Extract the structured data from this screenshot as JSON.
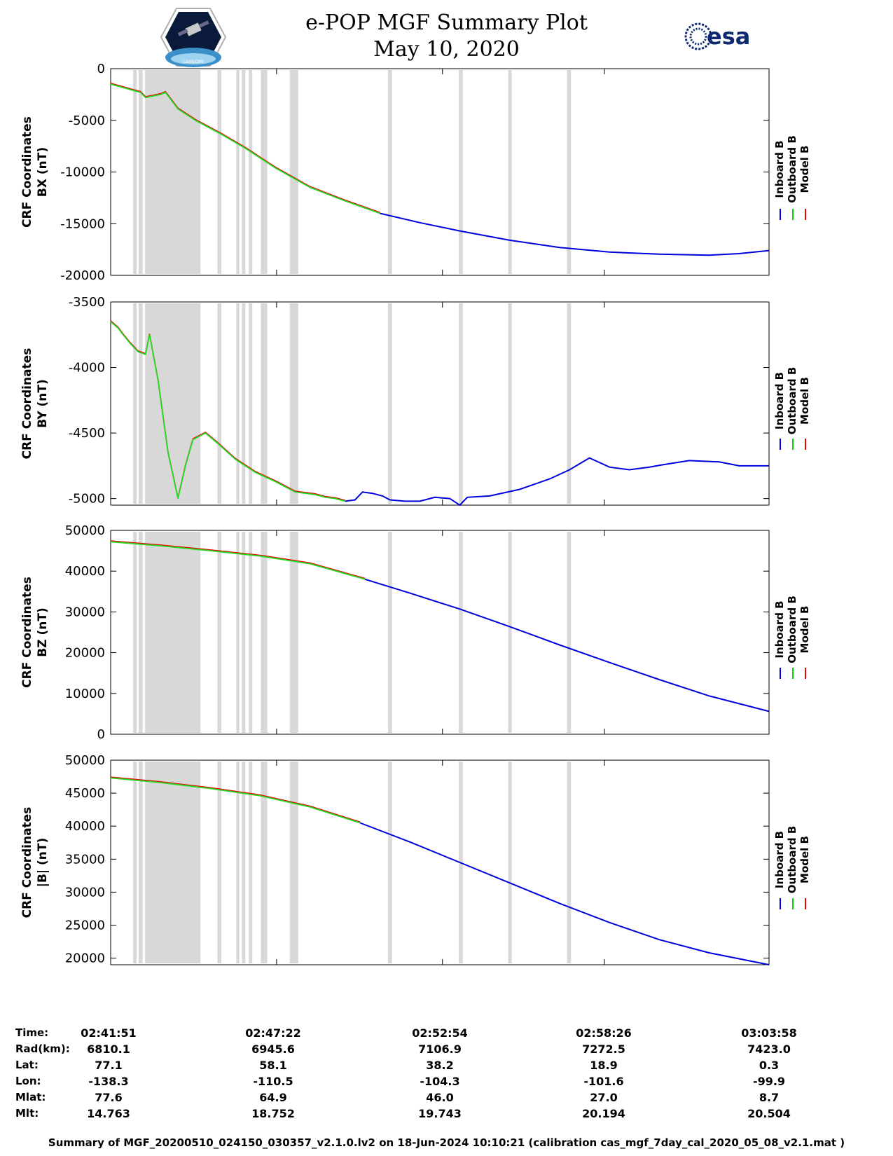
{
  "header": {
    "title_line1": "e-POP MGF Summary Plot",
    "title_line2": "May 10, 2020",
    "logo_left_text": "CASSIOPE",
    "logo_right_text": "esa"
  },
  "legend": {
    "entries": [
      {
        "label": "Inboard B",
        "color": "#0000dd"
      },
      {
        "label": "Outboard B",
        "color": "#00dd00"
      },
      {
        "label": "Model B",
        "color": "#ee0000"
      }
    ]
  },
  "colors": {
    "inboard": "#0000dd",
    "outboard": "#22dd22",
    "model": "#ee0000",
    "gap": "#d8d8d8"
  },
  "chart_data": [
    {
      "type": "line",
      "ylabel_line1": "CRF Coordinates",
      "ylabel_line2": "BX (nT)",
      "ylim": [
        -20000,
        0
      ],
      "yticks": [
        0,
        -5000,
        -10000,
        -15000,
        -20000
      ],
      "tick_labels": [
        "0",
        "-5000",
        "-10000",
        "-15000",
        "-20000"
      ],
      "x_range": [
        0,
        1320
      ],
      "green_until": 540,
      "series_points": [
        [
          0,
          -1500
        ],
        [
          30,
          -1900
        ],
        [
          45,
          -2100
        ],
        [
          60,
          -2300
        ],
        [
          70,
          -2800
        ],
        [
          100,
          -2500
        ],
        [
          110,
          -2300
        ],
        [
          135,
          -3900
        ],
        [
          170,
          -5000
        ],
        [
          220,
          -6300
        ],
        [
          270,
          -7700
        ],
        [
          330,
          -9600
        ],
        [
          400,
          -11500
        ],
        [
          470,
          -12800
        ],
        [
          540,
          -14000
        ],
        [
          620,
          -14900
        ],
        [
          700,
          -15700
        ],
        [
          800,
          -16600
        ],
        [
          900,
          -17300
        ],
        [
          1000,
          -17750
        ],
        [
          1100,
          -17950
        ],
        [
          1200,
          -18050
        ],
        [
          1260,
          -17900
        ],
        [
          1320,
          -17600
        ]
      ]
    },
    {
      "type": "line",
      "ylabel_line1": "CRF Coordinates",
      "ylabel_line2": "BY (nT)",
      "ylim": [
        -5050,
        -3500
      ],
      "yticks": [
        -3500,
        -4000,
        -4500,
        -5000
      ],
      "tick_labels": [
        "-3500",
        "-4000",
        "-4500",
        "-5000"
      ],
      "x_range": [
        0,
        1320
      ],
      "green_until": 470,
      "series_points": [
        [
          0,
          -3650
        ],
        [
          15,
          -3700
        ],
        [
          25,
          -3750
        ],
        [
          40,
          -3820
        ],
        [
          55,
          -3880
        ],
        [
          70,
          -3900
        ],
        [
          78,
          -3750
        ],
        [
          95,
          -4100
        ],
        [
          115,
          -4650
        ],
        [
          135,
          -5000
        ],
        [
          150,
          -4750
        ],
        [
          165,
          -4550
        ],
        [
          190,
          -4500
        ],
        [
          215,
          -4580
        ],
        [
          250,
          -4700
        ],
        [
          290,
          -4800
        ],
        [
          330,
          -4870
        ],
        [
          370,
          -4950
        ],
        [
          410,
          -4970
        ],
        [
          430,
          -4990
        ],
        [
          450,
          -5000
        ],
        [
          470,
          -5020
        ],
        [
          490,
          -5010
        ],
        [
          505,
          -4950
        ],
        [
          525,
          -4960
        ],
        [
          545,
          -4980
        ],
        [
          560,
          -5010
        ],
        [
          590,
          -5020
        ],
        [
          620,
          -5020
        ],
        [
          650,
          -4990
        ],
        [
          680,
          -5000
        ],
        [
          700,
          -5050
        ],
        [
          715,
          -4990
        ],
        [
          760,
          -4980
        ],
        [
          820,
          -4930
        ],
        [
          880,
          -4850
        ],
        [
          920,
          -4780
        ],
        [
          960,
          -4690
        ],
        [
          1000,
          -4760
        ],
        [
          1040,
          -4780
        ],
        [
          1080,
          -4760
        ],
        [
          1110,
          -4740
        ],
        [
          1160,
          -4710
        ],
        [
          1220,
          -4720
        ],
        [
          1260,
          -4750
        ],
        [
          1320,
          -4750
        ]
      ]
    },
    {
      "type": "line",
      "ylabel_line1": "CRF Coordinates",
      "ylabel_line2": "BZ (nT)",
      "ylim": [
        0,
        50000
      ],
      "yticks": [
        50000,
        40000,
        30000,
        20000,
        10000,
        0
      ],
      "tick_labels": [
        "50000",
        "40000",
        "30000",
        "20000",
        "10000",
        "0"
      ],
      "x_range": [
        0,
        1320
      ],
      "green_until": 510,
      "series_points": [
        [
          0,
          47200
        ],
        [
          100,
          46200
        ],
        [
          200,
          45000
        ],
        [
          300,
          43700
        ],
        [
          400,
          41800
        ],
        [
          510,
          38000
        ],
        [
          600,
          34600
        ],
        [
          700,
          30700
        ],
        [
          800,
          26400
        ],
        [
          900,
          21900
        ],
        [
          1000,
          17600
        ],
        [
          1100,
          13400
        ],
        [
          1200,
          9400
        ],
        [
          1320,
          5600
        ]
      ]
    },
    {
      "type": "line",
      "ylabel_line1": "CRF Coordinates",
      "ylabel_line2": "|B| (nT)",
      "ylim": [
        19000,
        50000
      ],
      "yticks": [
        50000,
        45000,
        40000,
        35000,
        30000,
        25000,
        20000
      ],
      "tick_labels": [
        "50000",
        "45000",
        "40000",
        "35000",
        "30000",
        "25000",
        "20000"
      ],
      "x_range": [
        0,
        1320
      ],
      "green_until": 500,
      "series_points": [
        [
          0,
          47300
        ],
        [
          100,
          46600
        ],
        [
          200,
          45700
        ],
        [
          300,
          44600
        ],
        [
          400,
          42900
        ],
        [
          500,
          40500
        ],
        [
          600,
          37600
        ],
        [
          700,
          34500
        ],
        [
          800,
          31400
        ],
        [
          900,
          28300
        ],
        [
          1000,
          25400
        ],
        [
          1100,
          22800
        ],
        [
          1200,
          20800
        ],
        [
          1320,
          19000
        ]
      ]
    }
  ],
  "gap_bands": [
    [
      45,
      52
    ],
    [
      56,
      64
    ],
    [
      69,
      80
    ],
    [
      80,
      180
    ],
    [
      214,
      222
    ],
    [
      252,
      258
    ],
    [
      263,
      270
    ],
    [
      277,
      284
    ],
    [
      301,
      314
    ],
    [
      359,
      376
    ],
    [
      556,
      564
    ],
    [
      698,
      706
    ],
    [
      797,
      804
    ],
    [
      915,
      923
    ]
  ],
  "info_table": {
    "row_labels": [
      "Time:",
      "Rad(km):",
      "Lat:",
      "Lon:",
      "Mlat:",
      "Mlt:"
    ],
    "columns": [
      [
        "02:41:51",
        "6810.1",
        "77.1",
        "-138.3",
        "77.6",
        "14.763"
      ],
      [
        "02:47:22",
        "6945.6",
        "58.1",
        "-110.5",
        "64.9",
        "18.752"
      ],
      [
        "02:52:54",
        "7106.9",
        "38.2",
        "-104.3",
        "46.0",
        "19.743"
      ],
      [
        "02:58:26",
        "7272.5",
        "18.9",
        "-101.6",
        "27.0",
        "20.194"
      ],
      [
        "03:03:58",
        "7423.0",
        "0.3",
        "-99.9",
        "8.7",
        "20.504"
      ]
    ]
  },
  "footer": "Summary of MGF_20200510_024150_030357_v2.1.0.lv2 on 18-Jun-2024 10:10:21 (calibration cas_mgf_7day_cal_2020_05_08_v2.1.mat )"
}
